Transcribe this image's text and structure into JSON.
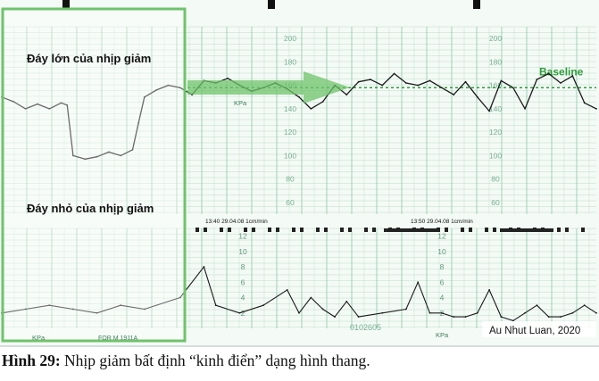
{
  "figure": {
    "caption_label": "Hình 29:",
    "caption_text": " Nhịp giảm bất định “kinh điển” dạng hình thang.",
    "credit": "Au Nhut Luan, 2020",
    "annotations": {
      "large_base": "Đáy lớn của nhịp giảm",
      "small_base": "Đáy nhỏ của nhịp giảm",
      "baseline": "Baseline"
    },
    "paper_labels": {
      "header_left": "13:40  29.04.08  1cm/min",
      "header_right": "13:50  29.04.08  1cm/min",
      "kpa_1": "KPa",
      "kpa_2": "KPa",
      "kpa_3": "KPa",
      "form_code": "FOR M 1911A",
      "serial": "0102605"
    },
    "colors": {
      "grid": "#8fc8a8",
      "trace": "#1a1a1a",
      "highlight": "#6fc36b",
      "baseline": "#2e9b3a"
    }
  },
  "chart_data": [
    {
      "type": "line",
      "name_hint": "FHR",
      "y_ticks": [
        200,
        180,
        160,
        140,
        120,
        100,
        80,
        60
      ],
      "ylim": [
        50,
        210
      ],
      "baseline_value": 158,
      "xlim": [
        0,
        100
      ],
      "x": [
        0,
        2,
        4,
        6,
        8,
        10,
        11,
        12,
        14,
        16,
        18,
        20,
        22,
        23,
        24,
        26,
        28,
        30,
        32,
        34,
        36,
        38,
        40,
        42,
        44,
        46,
        48,
        50,
        52,
        54,
        56,
        58,
        60,
        62,
        64,
        66,
        68,
        70,
        72,
        74,
        76,
        78,
        80,
        82,
        84,
        86,
        88,
        90,
        92,
        94,
        96,
        98,
        100
      ],
      "y": [
        150,
        146,
        140,
        144,
        140,
        145,
        143,
        100,
        97,
        99,
        103,
        100,
        105,
        128,
        150,
        156,
        160,
        158,
        152,
        164,
        162,
        166,
        160,
        155,
        158,
        162,
        157,
        150,
        140,
        146,
        160,
        152,
        163,
        165,
        160,
        170,
        162,
        160,
        164,
        158,
        152,
        163,
        150,
        138,
        164,
        158,
        140,
        165,
        170,
        162,
        168,
        145,
        140
      ]
    },
    {
      "type": "line",
      "name_hint": "UC",
      "y_ticks": [
        12,
        10,
        8,
        6,
        4,
        2
      ],
      "ylim": [
        0,
        13
      ],
      "xlim": [
        0,
        100
      ],
      "x": [
        0,
        4,
        8,
        12,
        16,
        20,
        24,
        30,
        34,
        36,
        40,
        44,
        48,
        50,
        52,
        54,
        56,
        58,
        60,
        64,
        68,
        70,
        72,
        74,
        76,
        78,
        80,
        82,
        84,
        86,
        88,
        90,
        92,
        94,
        96,
        98,
        100
      ],
      "y": [
        2,
        2.5,
        3,
        2.5,
        2,
        3,
        2.5,
        4,
        8,
        3,
        2,
        3,
        5,
        2,
        4,
        2.5,
        1.5,
        3.5,
        1.5,
        2,
        2.5,
        6,
        2,
        2,
        1.5,
        1.5,
        2,
        5,
        1.5,
        1,
        2,
        3,
        1.5,
        1.5,
        2,
        3,
        2
      ]
    }
  ]
}
